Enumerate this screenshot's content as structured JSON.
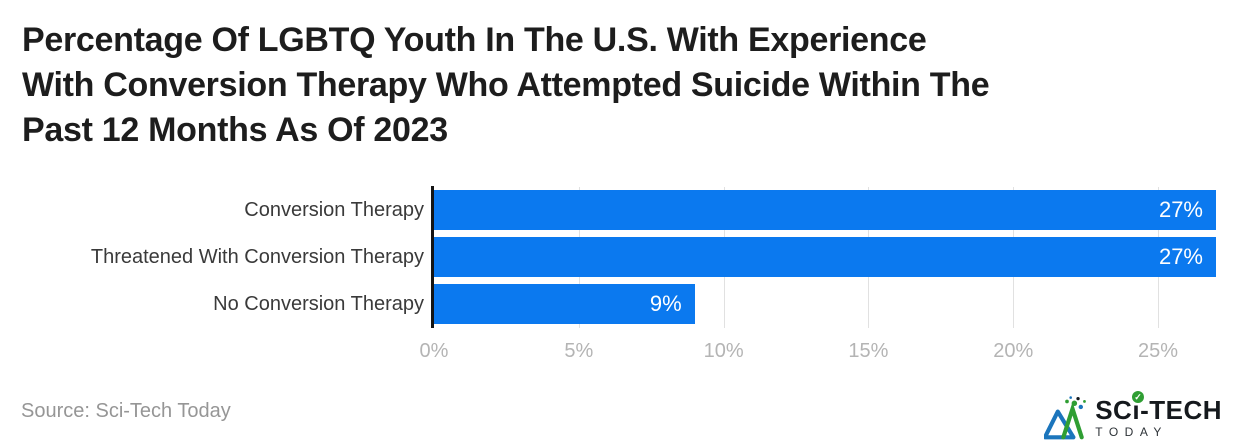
{
  "title_lines": [
    "Percentage Of LGBTQ Youth In The U.S. With Experience",
    "With Conversion Therapy Who Attempted Suicide Within The",
    "Past 12 Months As Of 2023"
  ],
  "chart_data": {
    "type": "bar",
    "orientation": "horizontal",
    "title": "Percentage Of LGBTQ Youth In The U.S. With Experience With Conversion Therapy Who Attempted Suicide Within The Past 12 Months As Of 2023",
    "categories": [
      "Conversion Therapy",
      "Threatened With Conversion Therapy",
      "No Conversion Therapy"
    ],
    "values": [
      27,
      27,
      9
    ],
    "value_labels": [
      "27%",
      "27%",
      "9%"
    ],
    "x_ticks": [
      0,
      5,
      10,
      15,
      20,
      25
    ],
    "x_tick_labels": [
      "0%",
      "5%",
      "10%",
      "15%",
      "20%",
      "25%"
    ],
    "xlabel": "",
    "ylabel": "",
    "xlim": [
      0,
      27
    ],
    "xmax": 27,
    "grid": "vertical-gridlines-on",
    "legend": "none"
  },
  "colors": {
    "bar": "#0b79ef",
    "axis_line": "#141414",
    "gridline": "#e1e1e1",
    "title_text": "#1d1d1d",
    "category_text": "#3a3a3a",
    "tick_text": "#b4b4b4",
    "value_text": "#ffffff",
    "source_text": "#969696",
    "logo_green": "#2f9e33",
    "logo_blue": "#1b75bc",
    "logo_dark": "#15191d"
  },
  "footer": {
    "source": "Source: Sci-Tech Today"
  },
  "logo": {
    "brand_prefix": "SC",
    "brand_i": "ı",
    "brand_suffix": "-TECH",
    "subtext": "TODAY",
    "check_glyph": "✓"
  }
}
